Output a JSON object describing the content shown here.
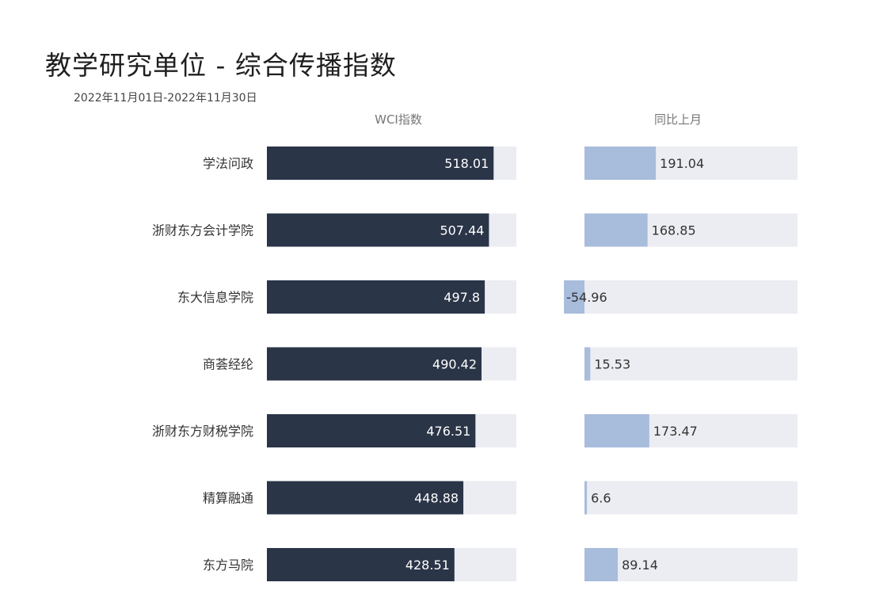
{
  "title": "教学研究单位 - 综合传播指数",
  "subtitle": "2022年11月01日-2022年11月30日",
  "colors": {
    "wci_bar": "#2b3548",
    "wci_track": "#ecedf2",
    "change_bar": "#a8bcdc",
    "change_track": "#ecedf2",
    "text_dark": "#333333",
    "text_light": "#ffffff",
    "header": "#777777"
  },
  "chart_data": [
    {
      "type": "bar",
      "orientation": "horizontal",
      "header": "WCI指数",
      "categories": [
        "学法问政",
        "浙财东方会计学院",
        "东大信息学院",
        "商荟经纶",
        "浙财东方财税学院",
        "精算融通",
        "东方马院"
      ],
      "values": [
        518.01,
        507.44,
        497.8,
        490.42,
        476.51,
        448.88,
        428.51
      ],
      "value_labels": [
        "518.01",
        "507.44",
        "497.8",
        "490.42",
        "476.51",
        "448.88",
        "428.51"
      ],
      "xlim": [
        0,
        570
      ],
      "grid": false
    },
    {
      "type": "bar",
      "orientation": "horizontal",
      "header": "同比上月",
      "categories": [
        "学法问政",
        "浙财东方会计学院",
        "东大信息学院",
        "商荟经纶",
        "浙财东方财税学院",
        "精算融通",
        "东方马院"
      ],
      "values": [
        191.04,
        168.85,
        -54.96,
        15.53,
        173.47,
        6.6,
        89.14
      ],
      "value_labels": [
        "191.04",
        "168.85",
        "-54.96",
        "15.53",
        "173.47",
        "6.6",
        "89.14"
      ],
      "xlim": [
        0,
        570
      ],
      "grid": false
    }
  ]
}
